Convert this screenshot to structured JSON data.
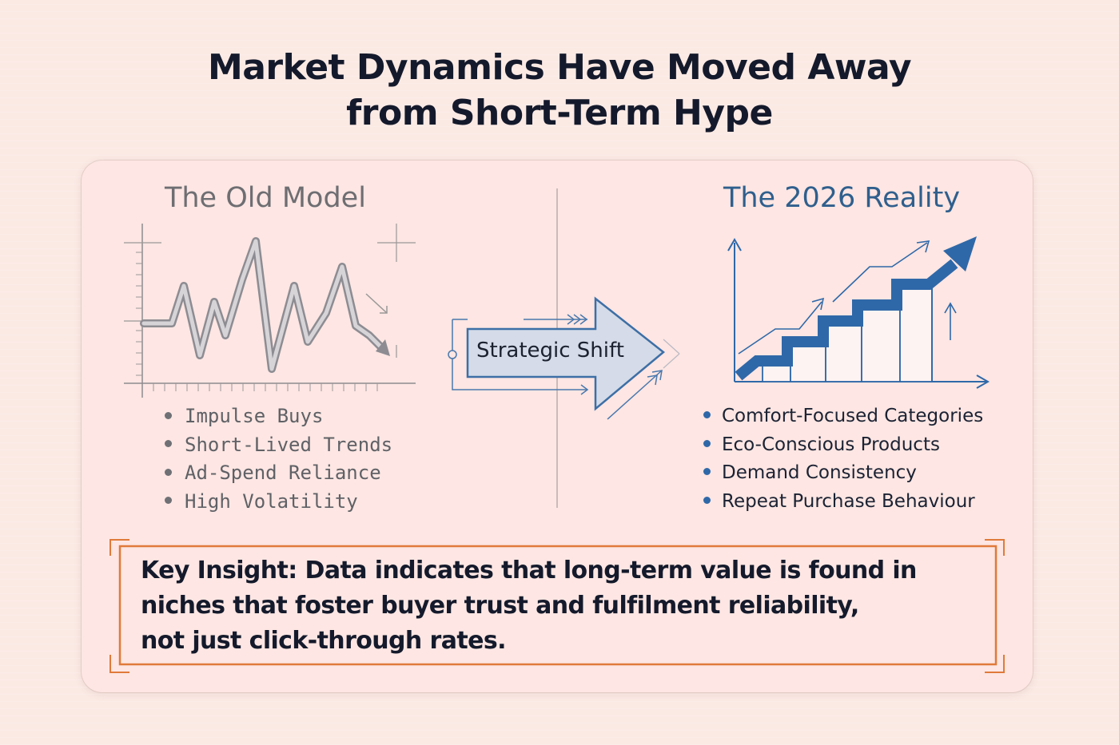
{
  "title": {
    "line1": "Market Dynamics Have Moved Away",
    "line2": "from Short-Term Hype"
  },
  "old_model": {
    "heading": "The Old Model",
    "items": [
      "Impulse Buys",
      "Short-Lived Trends",
      "Ad-Spend Reliance",
      "High Volatility"
    ]
  },
  "transition": {
    "label": "Strategic Shift"
  },
  "new_model": {
    "heading": "The 2026 Reality",
    "items": [
      "Comfort-Focused Categories",
      "Eco-Conscious Products",
      "Demand Consistency",
      "Repeat Purchase Behaviour"
    ]
  },
  "insight": {
    "line1": "Key Insight: Data indicates that long-term value is found in",
    "line2": "niches that foster buyer trust and fulfilment reliability,",
    "line3": "not just click-through rates."
  },
  "colors": {
    "background": "#fbe9e4",
    "card": "#fde6e3",
    "accent_blue": "#2f68a8",
    "accent_orange": "#e07a3a",
    "old_grey": "#8a8a90"
  }
}
